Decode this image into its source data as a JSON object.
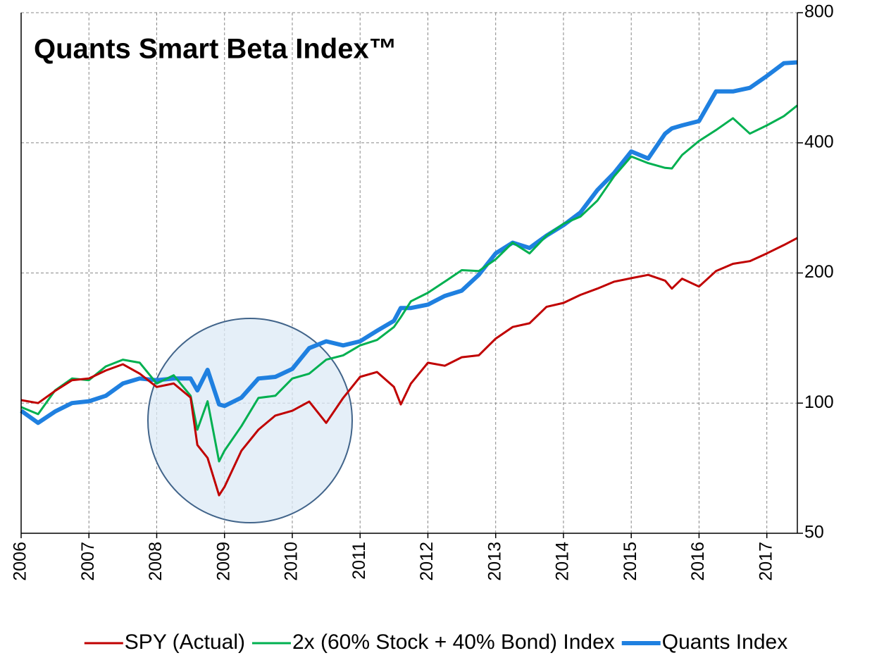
{
  "chart_data": {
    "type": "line",
    "title": "Quants Smart Beta Index™",
    "x": [
      2006,
      2006.25,
      2006.5,
      2006.75,
      2007,
      2007.25,
      2007.5,
      2007.75,
      2008,
      2008.25,
      2008.5,
      2008.6,
      2008.75,
      2008.92,
      2009,
      2009.25,
      2009.5,
      2009.75,
      2010,
      2010.25,
      2010.5,
      2010.75,
      2011,
      2011.25,
      2011.5,
      2011.6,
      2011.75,
      2012,
      2012.25,
      2012.5,
      2012.75,
      2013,
      2013.25,
      2013.5,
      2013.75,
      2014,
      2014.25,
      2014.5,
      2014.75,
      2015,
      2015.25,
      2015.5,
      2015.6,
      2015.75,
      2016,
      2016.25,
      2016.5,
      2016.75,
      2017,
      2017.25,
      2017.45
    ],
    "series": [
      {
        "name": "SPY (Actual)",
        "color": "#c00000",
        "width": 3,
        "values": [
          101.6,
          100,
          106.7,
          113,
          114,
          119,
          123,
          117,
          109,
          111,
          103,
          80,
          74.7,
          61.2,
          64,
          77.6,
          86.8,
          93.6,
          96,
          100.8,
          90,
          102.8,
          115,
          118,
          109,
          99.3,
          111,
          124,
          122,
          127.7,
          129,
          141,
          150,
          153,
          167,
          170.5,
          178,
          184,
          191,
          194.5,
          198,
          192,
          184,
          194,
          186,
          202,
          210,
          213,
          222,
          232,
          241
        ]
      },
      {
        "name": "2x (60% Stock + 40% Bond) Index",
        "color": "#00b050",
        "width": 3,
        "values": [
          97.9,
          94.3,
          107,
          114,
          113,
          121.6,
          126,
          124,
          111,
          116,
          104,
          86.8,
          101,
          73.3,
          77.6,
          88.5,
          102.8,
          104,
          114,
          117,
          126,
          129,
          136,
          140,
          150,
          158,
          172,
          180,
          191,
          203,
          202,
          215,
          235,
          222,
          244,
          260,
          270,
          294,
          335,
          372,
          359,
          350,
          349,
          375,
          404,
          428,
          456,
          420,
          439,
          461,
          488
        ]
      },
      {
        "name": "Quants Index",
        "color": "#1f80e0",
        "width": 6,
        "values": [
          96,
          90,
          95.6,
          100,
          101,
          104,
          111,
          114,
          113,
          114,
          114,
          107,
          119.4,
          99.3,
          98.5,
          103,
          114,
          115,
          120,
          134,
          139,
          136,
          139,
          147,
          155,
          166,
          166,
          169,
          177,
          182,
          198,
          222,
          235,
          228.5,
          244,
          258,
          276,
          311,
          341,
          382,
          368,
          420,
          432,
          439,
          449,
          526,
          526,
          536,
          571,
          611,
          614
        ]
      }
    ],
    "xlim": [
      2006,
      2017.45
    ],
    "xticks": [
      2006,
      2007,
      2008,
      2009,
      2010,
      2011,
      2012,
      2013,
      2014,
      2015,
      2016,
      2017
    ],
    "ylim": [
      50,
      800
    ],
    "yticks": [
      50,
      100,
      200,
      400,
      800
    ],
    "ylog": true,
    "yaxis_side": "right",
    "grid": true,
    "legend": "bottom"
  }
}
